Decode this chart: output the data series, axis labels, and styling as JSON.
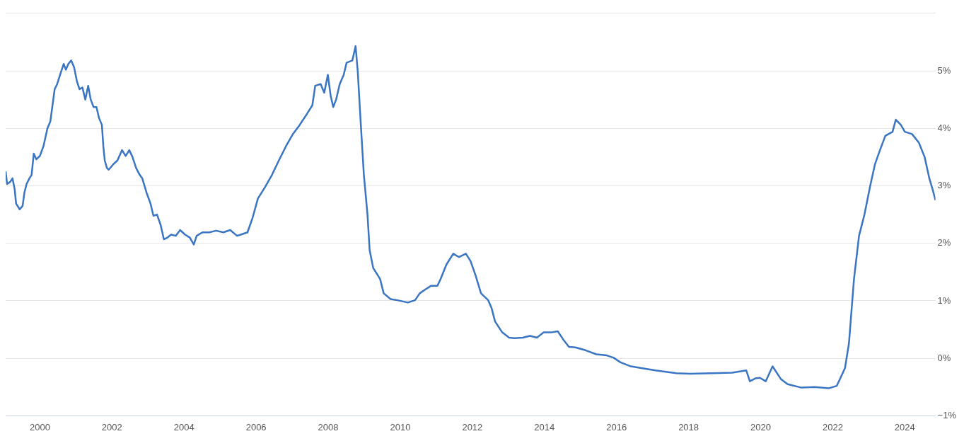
{
  "chart_data": {
    "type": "line",
    "x": [
      1999.05,
      1999.09,
      1999.18,
      1999.24,
      1999.3,
      1999.34,
      1999.44,
      1999.52,
      1999.57,
      1999.63,
      1999.71,
      1999.77,
      1999.83,
      1999.9,
      2000.0,
      2000.1,
      2000.21,
      2000.29,
      2000.41,
      2000.48,
      2000.56,
      2000.66,
      2000.72,
      2000.79,
      2000.87,
      2000.95,
      2001.03,
      2001.1,
      2001.18,
      2001.26,
      2001.34,
      2001.41,
      2001.49,
      2001.57,
      2001.64,
      2001.72,
      2001.76,
      2001.8,
      2001.86,
      2001.91,
      2002.03,
      2002.15,
      2002.28,
      2002.38,
      2002.48,
      2002.57,
      2002.67,
      2002.77,
      2002.84,
      2002.96,
      2003.07,
      2003.15,
      2003.25,
      2003.35,
      2003.44,
      2003.54,
      2003.64,
      2003.77,
      2003.89,
      2004.03,
      2004.16,
      2004.27,
      2004.35,
      2004.51,
      2004.7,
      2004.89,
      2005.09,
      2005.28,
      2005.47,
      2005.57,
      2005.76,
      2005.9,
      2006.05,
      2006.25,
      2006.44,
      2006.63,
      2006.83,
      2007.02,
      2007.21,
      2007.41,
      2007.56,
      2007.64,
      2007.79,
      2007.89,
      2007.99,
      2008.07,
      2008.14,
      2008.22,
      2008.32,
      2008.43,
      2008.51,
      2008.67,
      2008.76,
      2008.82,
      2008.9,
      2008.99,
      2009.09,
      2009.15,
      2009.25,
      2009.44,
      2009.54,
      2009.73,
      2009.92,
      2010.21,
      2010.41,
      2010.54,
      2010.7,
      2010.85,
      2011.03,
      2011.12,
      2011.28,
      2011.47,
      2011.63,
      2011.82,
      2011.95,
      2012.09,
      2012.24,
      2012.44,
      2012.53,
      2012.63,
      2012.83,
      2013.02,
      2013.17,
      2013.4,
      2013.6,
      2013.79,
      2013.98,
      2014.18,
      2014.37,
      2014.53,
      2014.68,
      2014.86,
      2015.14,
      2015.44,
      2015.73,
      2015.92,
      2016.11,
      2016.4,
      2016.69,
      2017.08,
      2017.66,
      2018.05,
      2018.63,
      2019.21,
      2019.6,
      2019.7,
      2019.85,
      2019.98,
      2020.14,
      2020.33,
      2020.56,
      2020.75,
      2021.13,
      2021.5,
      2021.9,
      2022.11,
      2022.2,
      2022.34,
      2022.45,
      2022.59,
      2022.73,
      2022.88,
      2023.04,
      2023.17,
      2023.31,
      2023.46,
      2023.66,
      2023.75,
      2023.89,
      2024.0,
      2024.2,
      2024.39,
      2024.55,
      2024.68,
      2024.77,
      2024.85
    ],
    "series": [
      {
        "color": "#3a75c4",
        "values": [
          3.25,
          3.03,
          3.07,
          3.13,
          2.94,
          2.69,
          2.59,
          2.65,
          2.88,
          3.03,
          3.13,
          3.19,
          3.56,
          3.46,
          3.52,
          3.69,
          4.0,
          4.12,
          4.68,
          4.77,
          4.93,
          5.12,
          5.02,
          5.12,
          5.18,
          5.06,
          4.81,
          4.68,
          4.71,
          4.5,
          4.74,
          4.5,
          4.37,
          4.37,
          4.18,
          4.06,
          3.69,
          3.44,
          3.31,
          3.28,
          3.37,
          3.44,
          3.62,
          3.52,
          3.62,
          3.5,
          3.31,
          3.19,
          3.13,
          2.88,
          2.69,
          2.48,
          2.5,
          2.32,
          2.07,
          2.1,
          2.15,
          2.13,
          2.23,
          2.15,
          2.1,
          1.98,
          2.13,
          2.19,
          2.19,
          2.22,
          2.19,
          2.23,
          2.13,
          2.15,
          2.19,
          2.44,
          2.78,
          2.98,
          3.19,
          3.44,
          3.69,
          3.9,
          4.06,
          4.25,
          4.4,
          4.74,
          4.77,
          4.62,
          4.93,
          4.56,
          4.37,
          4.5,
          4.77,
          4.93,
          5.14,
          5.18,
          5.43,
          4.99,
          4.12,
          3.19,
          2.5,
          1.88,
          1.57,
          1.38,
          1.13,
          1.03,
          1.01,
          0.97,
          1.01,
          1.13,
          1.2,
          1.26,
          1.26,
          1.38,
          1.63,
          1.82,
          1.76,
          1.82,
          1.69,
          1.44,
          1.13,
          1.01,
          0.88,
          0.64,
          0.45,
          0.36,
          0.35,
          0.36,
          0.39,
          0.36,
          0.45,
          0.45,
          0.47,
          0.32,
          0.2,
          0.19,
          0.14,
          0.07,
          0.05,
          0.01,
          -0.07,
          -0.14,
          -0.17,
          -0.21,
          -0.26,
          -0.27,
          -0.26,
          -0.25,
          -0.21,
          -0.4,
          -0.35,
          -0.34,
          -0.4,
          -0.14,
          -0.36,
          -0.45,
          -0.51,
          -0.5,
          -0.52,
          -0.48,
          -0.36,
          -0.17,
          0.26,
          1.38,
          2.13,
          2.5,
          3.0,
          3.37,
          3.62,
          3.87,
          3.94,
          4.15,
          4.06,
          3.94,
          3.9,
          3.75,
          3.5,
          3.13,
          2.94,
          2.75
        ]
      }
    ],
    "xlim": [
      1999.05,
      2024.85
    ],
    "xticks": [
      2000,
      2002,
      2004,
      2006,
      2008,
      2010,
      2012,
      2014,
      2016,
      2018,
      2020,
      2022,
      2024
    ],
    "ylim": [
      -1,
      6
    ],
    "yticks": [
      {
        "value": -1,
        "label": "−1%"
      },
      {
        "value": 0,
        "label": "0%"
      },
      {
        "value": 1,
        "label": "1%"
      },
      {
        "value": 2,
        "label": "2%"
      },
      {
        "value": 3,
        "label": "3%"
      },
      {
        "value": 4,
        "label": "4%"
      },
      {
        "value": 5,
        "label": "5%"
      },
      {
        "value": 6,
        "label": null
      }
    ],
    "grid": "y",
    "legend": false,
    "marker": "none",
    "line_style": "solid"
  }
}
